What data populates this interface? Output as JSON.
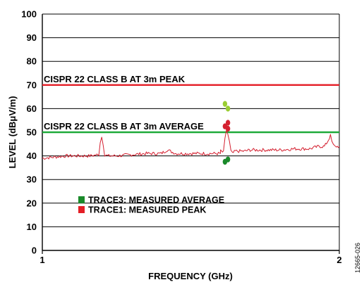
{
  "figure_id": "12665-026",
  "colors": {
    "peak_limit": "#e41e26",
    "average_limit": "#1faa3a",
    "trace1": "#d42030",
    "trace3": "#1a8a2a",
    "trace3_light": "#9acd32",
    "grid": "#000000"
  },
  "chart_data": {
    "type": "line",
    "title": "",
    "xlabel": "FREQUENCY (GHz)",
    "ylabel": "LEVEL (dBμV/m)",
    "xlim": [
      1,
      2
    ],
    "ylim": [
      0,
      100
    ],
    "x_ticks": [
      {
        "value": 1,
        "label": "1"
      },
      {
        "value": 2,
        "label": "2"
      }
    ],
    "y_ticks": [
      {
        "value": 0,
        "label": "0"
      },
      {
        "value": 10,
        "label": "10"
      },
      {
        "value": 20,
        "label": "20"
      },
      {
        "value": 30,
        "label": "30"
      },
      {
        "value": 40,
        "label": "40"
      },
      {
        "value": 50,
        "label": "50"
      },
      {
        "value": 60,
        "label": "60"
      },
      {
        "value": 70,
        "label": "70"
      },
      {
        "value": 80,
        "label": "80"
      },
      {
        "value": 90,
        "label": "90"
      },
      {
        "value": 100,
        "label": "100"
      }
    ],
    "grid": true,
    "limit_lines": [
      {
        "label": "CISPR 22 CLASS B AT 3m PEAK",
        "value": 70,
        "color": "#e41e26"
      },
      {
        "label": "CISPR 22 CLASS B AT 3m AVERAGE",
        "value": 50,
        "color": "#1faa3a"
      }
    ],
    "legend": {
      "placement": "bottom-left",
      "entries": [
        {
          "label": "TRACE3: MEASURED AVERAGE",
          "color": "#1a8a2a"
        },
        {
          "label": "TRACE1: MEASURED PEAK",
          "color": "#e41e26"
        }
      ]
    },
    "series": [
      {
        "legend_label": "TRACE1: MEASURED PEAK",
        "color": "#d42030",
        "x": [
          1.0,
          1.04,
          1.08,
          1.12,
          1.16,
          1.19,
          1.195,
          1.2,
          1.205,
          1.21,
          1.22,
          1.25,
          1.3,
          1.35,
          1.4,
          1.42,
          1.45,
          1.5,
          1.55,
          1.6,
          1.6,
          1.61,
          1.615,
          1.62,
          1.625,
          1.63,
          1.635,
          1.64,
          1.65,
          1.68,
          1.7,
          1.75,
          1.8,
          1.85,
          1.9,
          1.93,
          1.95,
          1.96,
          1.97,
          1.975,
          1.98,
          1.985,
          1.99,
          2.0
        ],
        "values": [
          39,
          39.5,
          40,
          40,
          40,
          40.5,
          46,
          48,
          45,
          40.5,
          40,
          40,
          40.5,
          41,
          41,
          42.5,
          41,
          41,
          41,
          41,
          42,
          41.5,
          47,
          51,
          49,
          46,
          42,
          41,
          42,
          42,
          42.5,
          42.5,
          42.5,
          43,
          43,
          44,
          44,
          46,
          48.5,
          46,
          44.5,
          44,
          44,
          44
        ]
      }
    ],
    "markers": [
      {
        "series": "TRACE1: MEASURED PEAK",
        "points": [
          {
            "x": 1.615,
            "y": 52.5
          },
          {
            "x": 1.625,
            "y": 54
          },
          {
            "x": 1.625,
            "y": 51.5
          }
        ]
      },
      {
        "series": "TRACE3: MEASURED AVERAGE",
        "points": [
          {
            "x": 1.615,
            "y": 37.5
          },
          {
            "x": 1.625,
            "y": 38.5
          }
        ]
      },
      {
        "series": "TRACE3: MEASURED AVERAGE (light)",
        "points": [
          {
            "x": 1.615,
            "y": 62
          },
          {
            "x": 1.625,
            "y": 60
          }
        ]
      }
    ]
  }
}
